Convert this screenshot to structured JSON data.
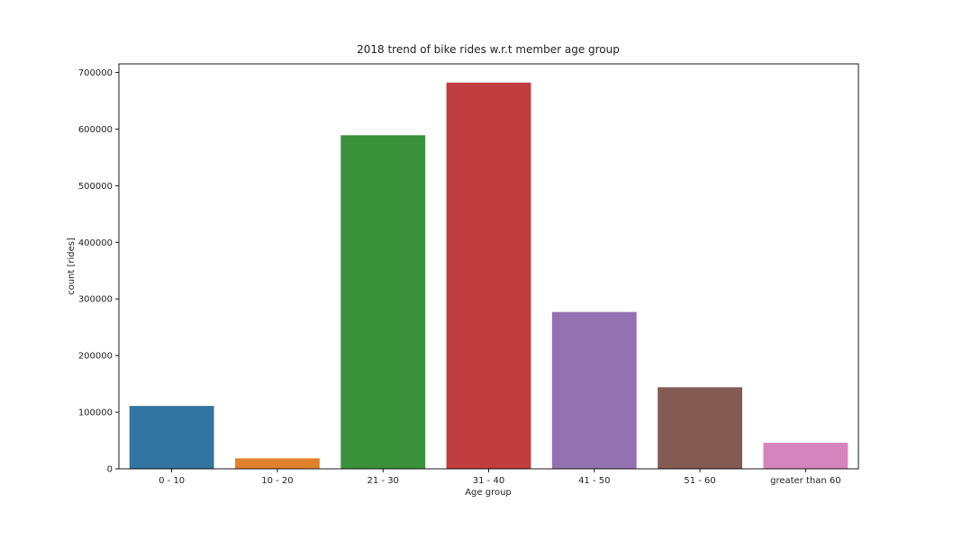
{
  "chart_data": {
    "type": "bar",
    "title": "2018 trend of bike rides w.r.t member age group",
    "xlabel": "Age group",
    "ylabel": "count [rides]",
    "categories": [
      "0 - 10",
      "10 - 20",
      "21 - 30",
      "31 - 40",
      "41 - 50",
      "51 - 60",
      "greater than 60"
    ],
    "values": [
      111000,
      18500,
      589000,
      682000,
      277000,
      144000,
      46000
    ],
    "colors": [
      "#3274a1",
      "#e1812c",
      "#3a923a",
      "#c03d3e",
      "#9372b2",
      "#845b53",
      "#d684bd"
    ],
    "ylim": [
      0,
      715000
    ],
    "yticks": [
      0,
      100000,
      200000,
      300000,
      400000,
      500000,
      600000,
      700000
    ],
    "ytick_labels": [
      "0",
      "100000",
      "200000",
      "300000",
      "400000",
      "500000",
      "600000",
      "700000"
    ],
    "grid": false,
    "legend": "none"
  }
}
